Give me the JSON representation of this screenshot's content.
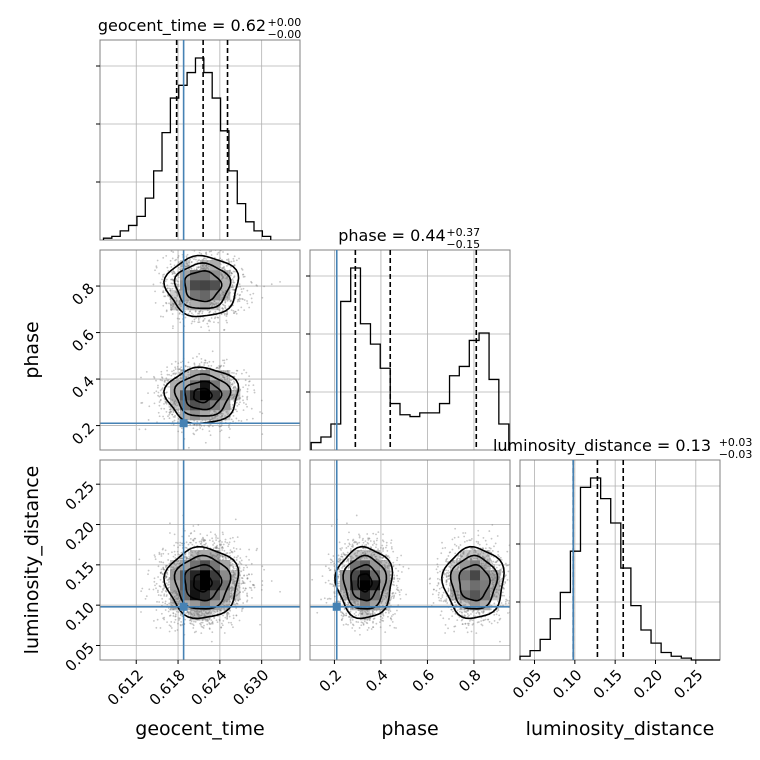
{
  "chart_data": {
    "type": "corner",
    "parameters": [
      "geocent_time",
      "phase",
      "luminosity_distance"
    ],
    "truths": {
      "geocent_time": 0.6188,
      "phase": 0.21,
      "luminosity_distance": 0.098
    },
    "titles": {
      "geocent_time": {
        "name": "geocent_time",
        "median": "0.62",
        "plus": "+0.00",
        "minus": "−0.00"
      },
      "phase": {
        "name": "phase",
        "median": "0.44",
        "plus": "+0.37",
        "minus": "−0.15"
      },
      "luminosity_distance": {
        "name": "luminosity_distance",
        "median": "0.13",
        "plus": "+0.03",
        "minus": "−0.03"
      }
    },
    "axes": {
      "geocent_time": {
        "label": "geocent_time",
        "range": [
          0.6068,
          0.6355
        ],
        "ticks": [
          "0.612",
          "0.618",
          "0.624",
          "0.630"
        ]
      },
      "phase": {
        "label": "phase",
        "range": [
          0.095,
          0.955
        ],
        "ticks": [
          "0.2",
          "0.4",
          "0.6",
          "0.8"
        ]
      },
      "luminosity_distance": {
        "label": "luminosity_distance",
        "range": [
          0.032,
          0.28
        ],
        "ticks": [
          "0.05",
          "0.10",
          "0.15",
          "0.20",
          "0.25"
        ]
      }
    },
    "quantiles": {
      "geocent_time": [
        0.6178,
        0.6216,
        0.6251
      ],
      "phase": [
        0.29,
        0.44,
        0.81
      ],
      "luminosity_distance": [
        0.098,
        0.128,
        0.16
      ]
    },
    "histograms": {
      "geocent_time": {
        "edges": [
          0.6073,
          0.6085,
          0.6097,
          0.6109,
          0.6121,
          0.6133,
          0.6145,
          0.6157,
          0.6169,
          0.6181,
          0.6193,
          0.6205,
          0.6217,
          0.6229,
          0.6241,
          0.6253,
          0.6265,
          0.6277,
          0.6289,
          0.6301,
          0.6313
        ],
        "counts": [
          0.01,
          0.02,
          0.05,
          0.08,
          0.13,
          0.23,
          0.38,
          0.59,
          0.78,
          0.85,
          0.92,
          1.0,
          0.92,
          0.78,
          0.6,
          0.38,
          0.2,
          0.1,
          0.05,
          0.02
        ]
      },
      "phase": {
        "edges": [
          0.1,
          0.142,
          0.185,
          0.227,
          0.27,
          0.312,
          0.355,
          0.397,
          0.44,
          0.482,
          0.525,
          0.567,
          0.61,
          0.652,
          0.695,
          0.737,
          0.78,
          0.822,
          0.865,
          0.907,
          0.95
        ],
        "counts": [
          0.04,
          0.07,
          0.14,
          0.8,
          0.98,
          0.68,
          0.57,
          0.44,
          0.25,
          0.19,
          0.18,
          0.2,
          0.2,
          0.25,
          0.4,
          0.45,
          0.59,
          0.63,
          0.38,
          0.14
        ]
      },
      "luminosity_distance": {
        "edges": [
          0.032,
          0.0445,
          0.057,
          0.0695,
          0.082,
          0.0945,
          0.107,
          0.1195,
          0.132,
          0.1445,
          0.157,
          0.1695,
          0.182,
          0.1945,
          0.207,
          0.2195,
          0.232,
          0.2445,
          0.257,
          0.2695,
          0.28
        ],
        "counts": [
          0.02,
          0.05,
          0.11,
          0.22,
          0.36,
          0.58,
          0.92,
          0.97,
          0.86,
          0.73,
          0.49,
          0.29,
          0.16,
          0.09,
          0.04,
          0.02,
          0.01,
          0.0,
          0.0,
          0.0
        ]
      }
    },
    "modes": {
      "phase": [
        {
          "center": 0.33,
          "sigma": 0.06,
          "weight": 0.56
        },
        {
          "center": 0.8,
          "sigma": 0.065,
          "weight": 0.44
        }
      ],
      "geocent_time": {
        "center": 0.6215,
        "sigma": 0.0026
      },
      "luminosity_distance": {
        "center": 0.128,
        "sigma": 0.022
      }
    },
    "grid": true,
    "colors": {
      "truth": "#4682b4",
      "hist": "#000000",
      "contour": "#000000",
      "samples": "#808080",
      "grid": "#b0b0b0",
      "frame": "#808080"
    }
  }
}
